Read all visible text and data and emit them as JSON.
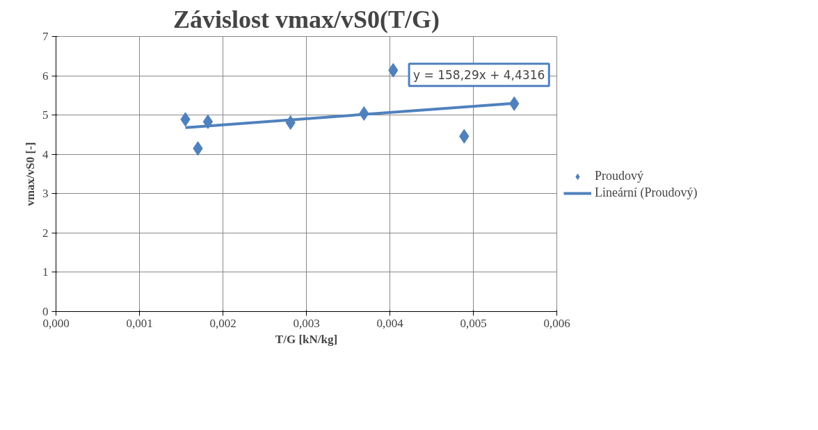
{
  "chart_data": {
    "type": "scatter",
    "title": "Závislost vmax/vS0(T/G)",
    "xlabel": "T/G [kN/kg]",
    "ylabel": "vmax/vS0 [-]",
    "x": [
      0.00155,
      0.0017,
      0.00182,
      0.00281,
      0.00369,
      0.00404,
      0.00489,
      0.00549
    ],
    "series": [
      {
        "name": "Proudový",
        "color": "#4f81bd",
        "values": [
          4.89,
          4.15,
          4.83,
          4.81,
          5.04,
          6.14,
          4.46,
          5.29
        ],
        "marker": "diamond"
      },
      {
        "name": "Lineární (Proudový)",
        "type": "line",
        "color": "#4f81bd",
        "x": [
          0.00155,
          0.00549
        ],
        "values": [
          4.68,
          5.3
        ]
      }
    ],
    "annotations": [
      "y = 158,29x + 4,4316"
    ],
    "xlim": [
      0,
      0.006
    ],
    "xticks": [
      {
        "value": 0,
        "label": "0,000"
      },
      {
        "value": 0.001,
        "label": "0,001"
      },
      {
        "value": 0.002,
        "label": "0,002"
      },
      {
        "value": 0.003,
        "label": "0,003"
      },
      {
        "value": 0.004,
        "label": "0,004"
      },
      {
        "value": 0.005,
        "label": "0,005"
      },
      {
        "value": 0.006,
        "label": "0,006"
      }
    ],
    "ylim": [
      0,
      7
    ],
    "yticks": [
      0,
      1,
      2,
      3,
      4,
      5,
      6,
      7
    ],
    "grid": true,
    "legend": "right"
  }
}
